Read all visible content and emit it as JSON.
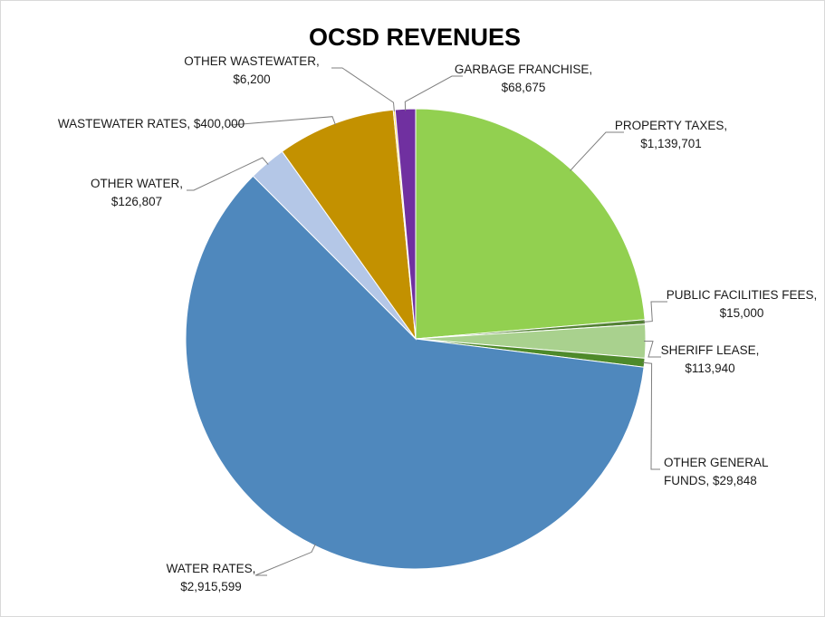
{
  "chart_data": {
    "type": "pie",
    "title": "OCSD REVENUES",
    "slices": [
      {
        "name": "PROPERTY TAXES",
        "value": 1139701,
        "value_label": "$1,139,701",
        "color": "#92d050"
      },
      {
        "name": "PUBLIC FACILITIES FEES",
        "value": 15000,
        "value_label": "$15,000",
        "color": "#548235"
      },
      {
        "name": "SHERIFF LEASE",
        "value": 113940,
        "value_label": "$113,940",
        "color": "#a9d18e"
      },
      {
        "name": "OTHER GENERAL FUNDS",
        "value": 29848,
        "value_label": "$29,848",
        "color": "#4e8a2a"
      },
      {
        "name": "WATER RATES",
        "value": 2915599,
        "value_label": "$2,915,599",
        "color": "#4f88bd"
      },
      {
        "name": "OTHER WATER",
        "value": 126807,
        "value_label": "$126,807",
        "color": "#b4c7e7"
      },
      {
        "name": "WASTEWATER RATES",
        "value": 400000,
        "value_label": "$400,000",
        "color": "#c39100"
      },
      {
        "name": "OTHER WASTEWATER",
        "value": 6200,
        "value_label": "$6,200",
        "color": "#ffd966"
      },
      {
        "name": "GARBAGE FRANCHISE",
        "value": 68675,
        "value_label": "$68,675",
        "color": "#7030a0"
      }
    ]
  }
}
